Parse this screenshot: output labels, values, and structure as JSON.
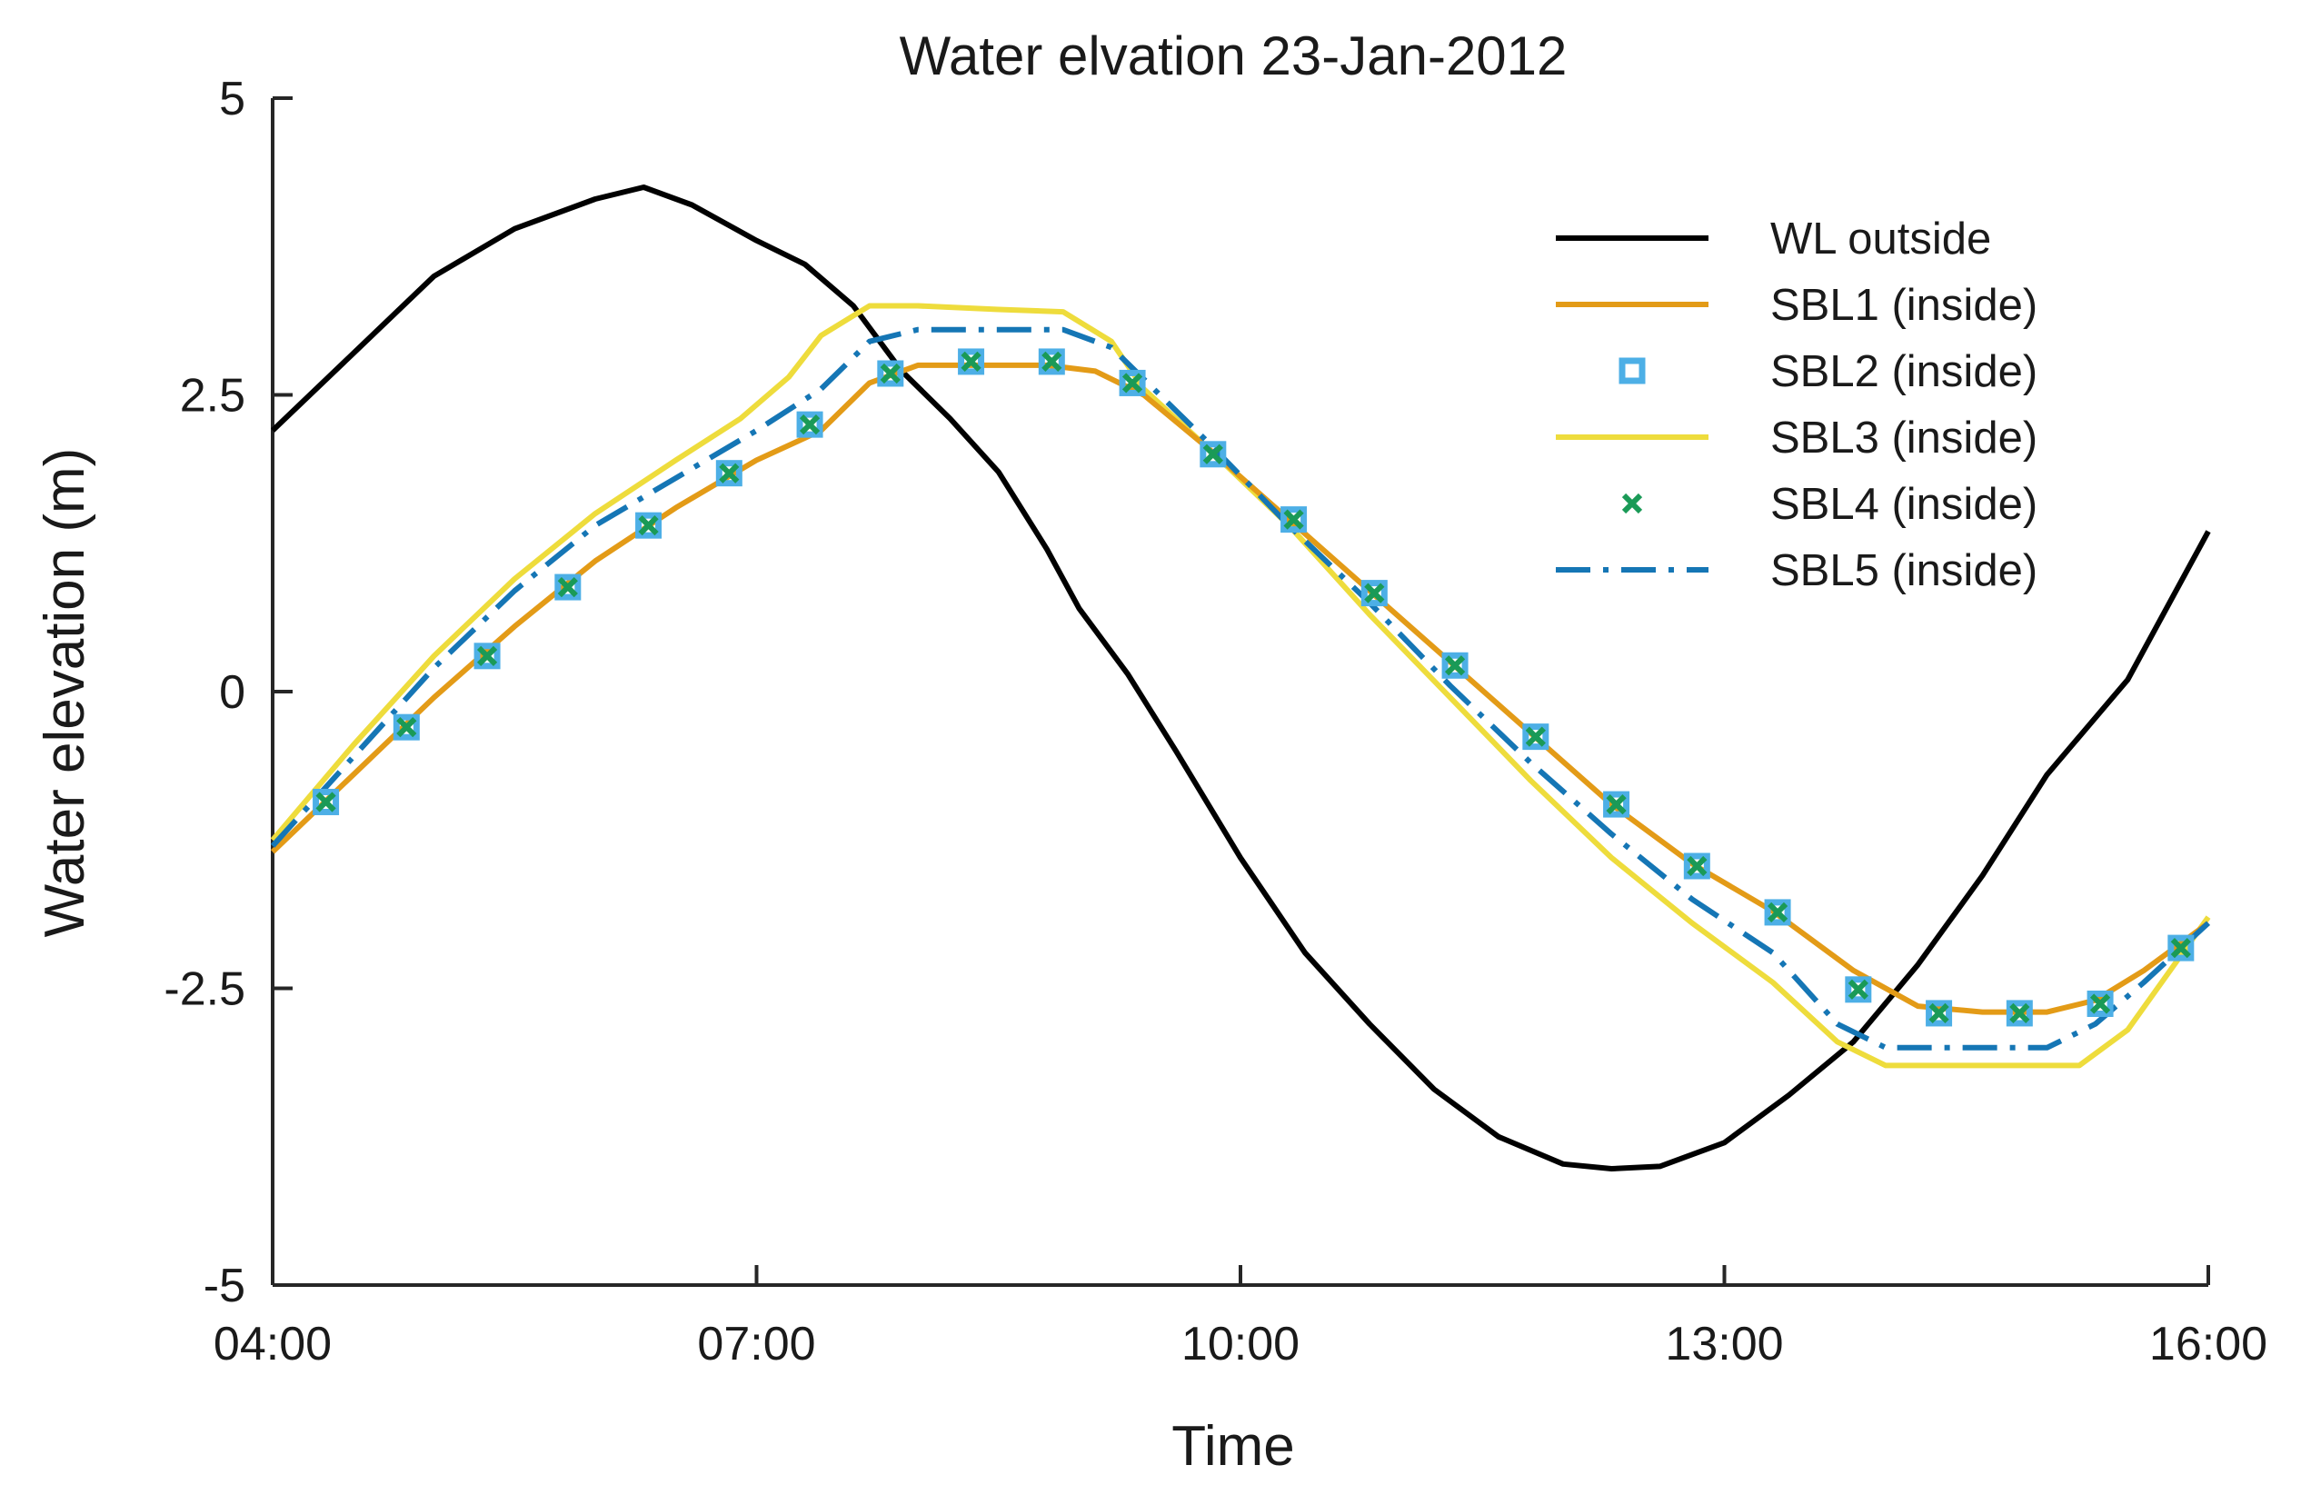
{
  "chart_data": {
    "type": "line",
    "title": "Water elvation 23-Jan-2012",
    "xlabel": "Time",
    "ylabel": "Water elevation (m)",
    "xlim": [
      4,
      16
    ],
    "ylim": [
      -5,
      5
    ],
    "x_ticks": [
      {
        "value": 4,
        "label": "04:00"
      },
      {
        "value": 7,
        "label": "07:00"
      },
      {
        "value": 10,
        "label": "10:00"
      },
      {
        "value": 13,
        "label": "13:00"
      },
      {
        "value": 16,
        "label": "16:00"
      }
    ],
    "y_ticks": [
      {
        "value": 5,
        "label": "5"
      },
      {
        "value": 2.5,
        "label": "2.5"
      },
      {
        "value": 0,
        "label": "0"
      },
      {
        "value": -2.5,
        "label": "-2.5"
      },
      {
        "value": -5,
        "label": "-5"
      }
    ],
    "grid": false,
    "legend_position": "top-right",
    "series": [
      {
        "name": "WL outside",
        "style": "line",
        "color": "#000000",
        "dash": "solid",
        "points": [
          [
            4.0,
            2.2
          ],
          [
            4.5,
            2.85
          ],
          [
            5.0,
            3.5
          ],
          [
            5.5,
            3.9
          ],
          [
            6.0,
            4.15
          ],
          [
            6.3,
            4.25
          ],
          [
            6.6,
            4.1
          ],
          [
            7.0,
            3.8
          ],
          [
            7.3,
            3.6
          ],
          [
            7.6,
            3.25
          ],
          [
            7.9,
            2.7
          ],
          [
            8.2,
            2.3
          ],
          [
            8.5,
            1.85
          ],
          [
            8.8,
            1.2
          ],
          [
            9.0,
            0.7
          ],
          [
            9.3,
            0.15
          ],
          [
            9.6,
            -0.5
          ],
          [
            10.0,
            -1.4
          ],
          [
            10.4,
            -2.2
          ],
          [
            10.8,
            -2.8
          ],
          [
            11.2,
            -3.35
          ],
          [
            11.6,
            -3.75
          ],
          [
            12.0,
            -3.98
          ],
          [
            12.3,
            -4.02
          ],
          [
            12.6,
            -4.0
          ],
          [
            13.0,
            -3.8
          ],
          [
            13.4,
            -3.4
          ],
          [
            13.8,
            -2.95
          ],
          [
            14.2,
            -2.3
          ],
          [
            14.6,
            -1.55
          ],
          [
            15.0,
            -0.7
          ],
          [
            15.5,
            0.1
          ],
          [
            16.0,
            1.35
          ]
        ]
      },
      {
        "name": "SBL1 (inside)",
        "style": "line",
        "color": "#E39B17",
        "dash": "solid",
        "points": [
          [
            4.0,
            -1.35
          ],
          [
            4.5,
            -0.7
          ],
          [
            5.0,
            -0.05
          ],
          [
            5.5,
            0.55
          ],
          [
            6.0,
            1.1
          ],
          [
            6.5,
            1.55
          ],
          [
            7.0,
            1.95
          ],
          [
            7.4,
            2.2
          ],
          [
            7.7,
            2.6
          ],
          [
            8.0,
            2.75
          ],
          [
            8.5,
            2.75
          ],
          [
            8.8,
            2.75
          ],
          [
            9.1,
            2.7
          ],
          [
            9.4,
            2.5
          ],
          [
            9.8,
            2.05
          ],
          [
            10.3,
            1.45
          ],
          [
            10.8,
            0.85
          ],
          [
            11.3,
            0.25
          ],
          [
            11.8,
            -0.35
          ],
          [
            12.3,
            -0.95
          ],
          [
            12.8,
            -1.45
          ],
          [
            13.3,
            -1.85
          ],
          [
            13.8,
            -2.35
          ],
          [
            14.2,
            -2.65
          ],
          [
            14.6,
            -2.7
          ],
          [
            15.0,
            -2.7
          ],
          [
            15.3,
            -2.6
          ],
          [
            15.6,
            -2.35
          ],
          [
            16.0,
            -1.95
          ]
        ]
      },
      {
        "name": "SBL2 (inside)",
        "style": "marker-square",
        "color": "#4DAFE6",
        "dash": "none",
        "points": [
          [
            4.33,
            -0.93
          ],
          [
            4.83,
            -0.3
          ],
          [
            5.33,
            0.3
          ],
          [
            5.83,
            0.88
          ],
          [
            6.33,
            1.4
          ],
          [
            6.83,
            1.84
          ],
          [
            7.33,
            2.25
          ],
          [
            7.83,
            2.68
          ],
          [
            8.33,
            2.78
          ],
          [
            8.83,
            2.78
          ],
          [
            9.33,
            2.6
          ],
          [
            9.83,
            2.0
          ],
          [
            10.33,
            1.45
          ],
          [
            10.83,
            0.83
          ],
          [
            11.33,
            0.22
          ],
          [
            11.83,
            -0.38
          ],
          [
            12.33,
            -0.95
          ],
          [
            12.83,
            -1.47
          ],
          [
            13.33,
            -1.86
          ],
          [
            13.83,
            -2.51
          ],
          [
            14.33,
            -2.71
          ],
          [
            14.83,
            -2.71
          ],
          [
            15.33,
            -2.63
          ],
          [
            15.83,
            -2.16
          ]
        ]
      },
      {
        "name": "SBL3 (inside)",
        "style": "line",
        "color": "#EEDC3C",
        "dash": "solid",
        "points": [
          [
            4.0,
            -1.25
          ],
          [
            4.5,
            -0.45
          ],
          [
            5.0,
            0.3
          ],
          [
            5.5,
            0.95
          ],
          [
            6.0,
            1.5
          ],
          [
            6.5,
            1.95
          ],
          [
            6.9,
            2.3
          ],
          [
            7.2,
            2.65
          ],
          [
            7.4,
            3.0
          ],
          [
            7.7,
            3.25
          ],
          [
            8.0,
            3.25
          ],
          [
            8.5,
            3.22
          ],
          [
            8.9,
            3.2
          ],
          [
            9.2,
            2.95
          ],
          [
            9.4,
            2.55
          ],
          [
            9.8,
            2.05
          ],
          [
            10.3,
            1.4
          ],
          [
            10.8,
            0.65
          ],
          [
            11.3,
            -0.05
          ],
          [
            11.8,
            -0.75
          ],
          [
            12.3,
            -1.4
          ],
          [
            12.8,
            -1.95
          ],
          [
            13.3,
            -2.45
          ],
          [
            13.7,
            -2.95
          ],
          [
            14.0,
            -3.15
          ],
          [
            14.5,
            -3.15
          ],
          [
            15.0,
            -3.15
          ],
          [
            15.2,
            -3.15
          ],
          [
            15.5,
            -2.85
          ],
          [
            16.0,
            -1.9
          ]
        ]
      },
      {
        "name": "SBL4 (inside)",
        "style": "marker-x",
        "color": "#1A9A57",
        "dash": "none",
        "points": [
          [
            4.33,
            -0.93
          ],
          [
            4.83,
            -0.3
          ],
          [
            5.33,
            0.3
          ],
          [
            5.83,
            0.88
          ],
          [
            6.33,
            1.4
          ],
          [
            6.83,
            1.84
          ],
          [
            7.33,
            2.25
          ],
          [
            7.83,
            2.68
          ],
          [
            8.33,
            2.78
          ],
          [
            8.83,
            2.78
          ],
          [
            9.33,
            2.6
          ],
          [
            9.83,
            2.0
          ],
          [
            10.33,
            1.45
          ],
          [
            10.83,
            0.83
          ],
          [
            11.33,
            0.22
          ],
          [
            11.83,
            -0.38
          ],
          [
            12.33,
            -0.95
          ],
          [
            12.83,
            -1.47
          ],
          [
            13.33,
            -1.86
          ],
          [
            13.83,
            -2.51
          ],
          [
            14.33,
            -2.71
          ],
          [
            14.83,
            -2.71
          ],
          [
            15.33,
            -2.63
          ],
          [
            15.83,
            -2.16
          ]
        ]
      },
      {
        "name": "SBL5 (inside)",
        "style": "line",
        "color": "#1576B5",
        "dash": "dashdot",
        "points": [
          [
            4.0,
            -1.3
          ],
          [
            4.5,
            -0.55
          ],
          [
            5.0,
            0.2
          ],
          [
            5.5,
            0.85
          ],
          [
            6.0,
            1.4
          ],
          [
            6.5,
            1.8
          ],
          [
            7.0,
            2.2
          ],
          [
            7.4,
            2.55
          ],
          [
            7.7,
            2.95
          ],
          [
            8.0,
            3.05
          ],
          [
            8.5,
            3.05
          ],
          [
            8.9,
            3.05
          ],
          [
            9.2,
            2.9
          ],
          [
            9.5,
            2.5
          ],
          [
            9.8,
            2.1
          ],
          [
            10.3,
            1.4
          ],
          [
            10.8,
            0.75
          ],
          [
            11.3,
            0.05
          ],
          [
            11.8,
            -0.6
          ],
          [
            12.3,
            -1.2
          ],
          [
            12.8,
            -1.75
          ],
          [
            13.3,
            -2.2
          ],
          [
            13.7,
            -2.8
          ],
          [
            14.0,
            -3.0
          ],
          [
            14.5,
            -3.0
          ],
          [
            15.0,
            -3.0
          ],
          [
            15.3,
            -2.8
          ],
          [
            15.6,
            -2.45
          ],
          [
            16.0,
            -1.95
          ]
        ]
      }
    ]
  }
}
